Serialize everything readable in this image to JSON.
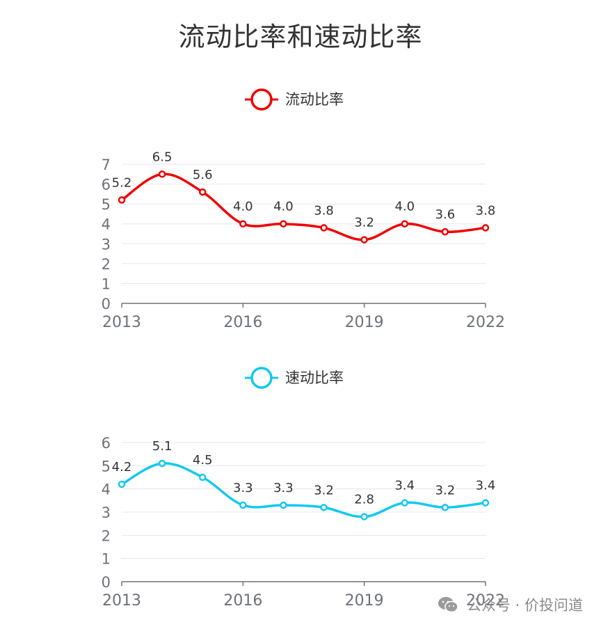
{
  "title": "流动比率和速动比率",
  "watermark": {
    "text": "公众号 · 价投问道"
  },
  "colors": {
    "current_ratio": "#f00000",
    "quick_ratio": "#14c8f0",
    "axis": "#6e7079",
    "grid": "#e0e6f1",
    "label": "#333333"
  },
  "chart_data": [
    {
      "type": "line",
      "legend": "流动比率",
      "color": "#f00000",
      "x": [
        "2013",
        "2014",
        "2015",
        "2016",
        "2017",
        "2018",
        "2019",
        "2020",
        "2021",
        "2022"
      ],
      "x_tick_labels": [
        "2013",
        "2016",
        "2019",
        "2022"
      ],
      "values": [
        5.2,
        6.5,
        5.6,
        4.0,
        4.0,
        3.8,
        3.2,
        4.0,
        3.6,
        3.8
      ],
      "data_labels": [
        "5.2",
        "6.5",
        "5.6",
        "4.0",
        "4.0",
        "3.8",
        "3.2",
        "4.0",
        "3.6",
        "3.8"
      ],
      "y_ticks": [
        "0",
        "1",
        "2",
        "3",
        "4",
        "5",
        "6",
        "7"
      ],
      "ylim": [
        0,
        7
      ]
    },
    {
      "type": "line",
      "legend": "速动比率",
      "color": "#14c8f0",
      "x": [
        "2013",
        "2014",
        "2015",
        "2016",
        "2017",
        "2018",
        "2019",
        "2020",
        "2021",
        "2022"
      ],
      "x_tick_labels": [
        "2013",
        "2016",
        "2019",
        "2022"
      ],
      "values": [
        4.2,
        5.1,
        4.5,
        3.3,
        3.3,
        3.2,
        2.8,
        3.4,
        3.2,
        3.4
      ],
      "data_labels": [
        "4.2",
        "5.1",
        "4.5",
        "3.3",
        "3.3",
        "3.2",
        "2.8",
        "3.4",
        "3.2",
        "3.4"
      ],
      "y_ticks": [
        "0",
        "1",
        "2",
        "3",
        "4",
        "5",
        "6"
      ],
      "ylim": [
        0,
        6
      ]
    }
  ]
}
